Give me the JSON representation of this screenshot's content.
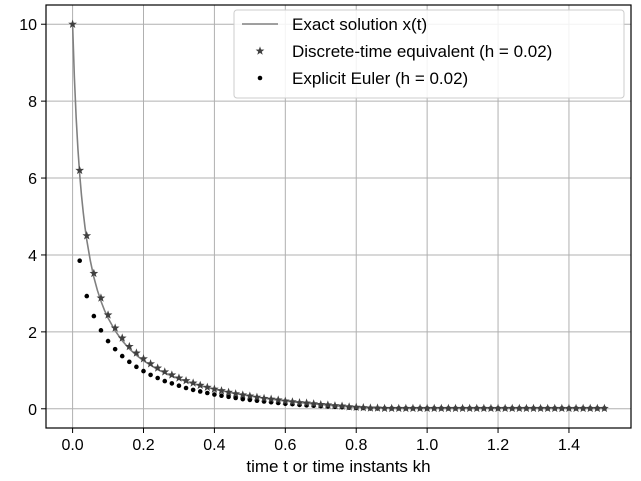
{
  "chart_data": {
    "type": "line",
    "xlabel": "time t or time instants kh",
    "ylabel": "",
    "title": "",
    "xlim": [
      -0.075,
      1.575
    ],
    "ylim": [
      -0.5,
      10.5
    ],
    "xticks": [
      0.0,
      0.2,
      0.4,
      0.6,
      0.8,
      1.0,
      1.2,
      1.4
    ],
    "xtick_labels": [
      "0.0",
      "0.2",
      "0.4",
      "0.6",
      "0.8",
      "1.0",
      "1.2",
      "1.4"
    ],
    "yticks": [
      0,
      2,
      4,
      6,
      8,
      10
    ],
    "ytick_labels": [
      "0",
      "2",
      "4",
      "6",
      "8",
      "10"
    ],
    "grid": true,
    "legend_position": "top-right",
    "colors": {
      "exact": "#808080",
      "discrete": "#404040",
      "euler": "#000000",
      "grid": "#b0b0b0",
      "frame": "#000000"
    },
    "series": [
      {
        "name": "Exact solution x(t)",
        "kind": "line",
        "x": [
          0.0,
          0.005,
          0.01,
          0.015,
          0.02,
          0.025,
          0.03,
          0.035,
          0.04,
          0.05,
          0.06,
          0.07,
          0.08,
          0.09,
          0.1,
          0.12,
          0.14,
          0.16,
          0.18,
          0.2,
          0.24,
          0.28,
          0.32,
          0.36,
          0.4,
          0.45,
          0.5,
          0.55,
          0.6,
          0.65,
          0.7,
          0.75,
          0.8,
          0.85,
          0.9,
          0.95,
          1.0,
          1.1,
          1.2,
          1.3,
          1.4,
          1.5
        ],
        "y": [
          10.0,
          8.63,
          7.58,
          6.76,
          6.1,
          5.56,
          5.11,
          4.72,
          4.39,
          3.85,
          3.42,
          3.08,
          2.8,
          2.56,
          2.36,
          2.03,
          1.77,
          1.56,
          1.39,
          1.25,
          1.02,
          0.85,
          0.71,
          0.6,
          0.51,
          0.41,
          0.33,
          0.26,
          0.2,
          0.15,
          0.11,
          0.07,
          0.04,
          0.02,
          0.01,
          0.01,
          0.01,
          0.01,
          0.01,
          0.01,
          0.01,
          0.01
        ]
      },
      {
        "name": "Discrete-time equivalent (h = 0.02)",
        "kind": "markers",
        "marker": "star",
        "x": [
          0.0,
          0.02,
          0.04,
          0.06,
          0.08,
          0.1,
          0.12,
          0.14,
          0.16,
          0.18,
          0.2,
          0.22,
          0.24,
          0.26,
          0.28,
          0.3,
          0.32,
          0.34,
          0.36,
          0.38,
          0.4,
          0.42,
          0.44,
          0.46,
          0.48,
          0.5,
          0.52,
          0.54,
          0.56,
          0.58,
          0.6,
          0.62,
          0.64,
          0.66,
          0.68,
          0.7,
          0.72,
          0.74,
          0.76,
          0.78,
          0.8,
          0.82,
          0.84,
          0.86,
          0.88,
          0.9,
          0.92,
          0.94,
          0.96,
          0.98,
          1.0,
          1.02,
          1.04,
          1.06,
          1.08,
          1.1,
          1.12,
          1.14,
          1.16,
          1.18,
          1.2,
          1.22,
          1.24,
          1.26,
          1.28,
          1.3,
          1.32,
          1.34,
          1.36,
          1.38,
          1.4,
          1.42,
          1.44,
          1.46,
          1.48,
          1.5
        ],
        "y": [
          10.0,
          6.2,
          4.5,
          3.52,
          2.88,
          2.44,
          2.1,
          1.84,
          1.62,
          1.45,
          1.3,
          1.17,
          1.06,
          0.96,
          0.88,
          0.8,
          0.73,
          0.67,
          0.61,
          0.56,
          0.51,
          0.47,
          0.43,
          0.39,
          0.36,
          0.33,
          0.3,
          0.27,
          0.25,
          0.23,
          0.2,
          0.18,
          0.16,
          0.15,
          0.13,
          0.11,
          0.1,
          0.08,
          0.07,
          0.05,
          0.04,
          0.03,
          0.02,
          0.02,
          0.01,
          0.01,
          0.01,
          0.01,
          0.01,
          0.01,
          0.01,
          0.01,
          0.01,
          0.01,
          0.01,
          0.01,
          0.01,
          0.01,
          0.01,
          0.01,
          0.01,
          0.01,
          0.01,
          0.01,
          0.01,
          0.01,
          0.01,
          0.01,
          0.01,
          0.01,
          0.01,
          0.01,
          0.01,
          0.01,
          0.01,
          0.01
        ]
      },
      {
        "name": "Explicit Euler (h = 0.02)",
        "kind": "markers",
        "marker": "dot",
        "x": [
          0.02,
          0.04,
          0.06,
          0.08,
          0.1,
          0.12,
          0.14,
          0.16,
          0.18,
          0.2,
          0.22,
          0.24,
          0.26,
          0.28,
          0.3,
          0.32,
          0.34,
          0.36,
          0.38,
          0.4,
          0.42,
          0.44,
          0.46,
          0.48,
          0.5,
          0.52,
          0.54,
          0.56,
          0.58,
          0.6,
          0.62,
          0.64,
          0.66,
          0.68,
          0.7,
          0.72,
          0.74,
          0.76,
          0.78,
          0.8,
          0.82,
          0.84,
          0.86,
          0.88,
          0.9,
          0.92,
          0.94,
          0.96,
          0.98,
          1.0,
          1.02,
          1.04,
          1.06,
          1.08,
          1.1,
          1.12,
          1.14,
          1.16,
          1.18,
          1.2,
          1.22,
          1.24,
          1.26,
          1.28,
          1.3,
          1.32,
          1.34,
          1.36,
          1.38,
          1.4,
          1.42,
          1.44,
          1.46,
          1.48,
          1.5
        ],
        "y": [
          3.85,
          2.93,
          2.41,
          2.04,
          1.76,
          1.55,
          1.37,
          1.22,
          1.09,
          0.98,
          0.88,
          0.8,
          0.72,
          0.66,
          0.6,
          0.54,
          0.49,
          0.45,
          0.41,
          0.37,
          0.34,
          0.31,
          0.28,
          0.25,
          0.23,
          0.21,
          0.19,
          0.17,
          0.15,
          0.13,
          0.12,
          0.1,
          0.09,
          0.08,
          0.07,
          0.06,
          0.05,
          0.04,
          0.03,
          0.02,
          0.02,
          0.01,
          0.01,
          0.01,
          0.01,
          0.01,
          0.01,
          0.01,
          0.01,
          0.01,
          0.01,
          0.01,
          0.01,
          0.01,
          0.01,
          0.01,
          0.01,
          0.01,
          0.01,
          0.01,
          0.01,
          0.01,
          0.01,
          0.01,
          0.01,
          0.01,
          0.01,
          0.01,
          0.01,
          0.01,
          0.01,
          0.01,
          0.01,
          0.01,
          0.01
        ]
      }
    ]
  }
}
